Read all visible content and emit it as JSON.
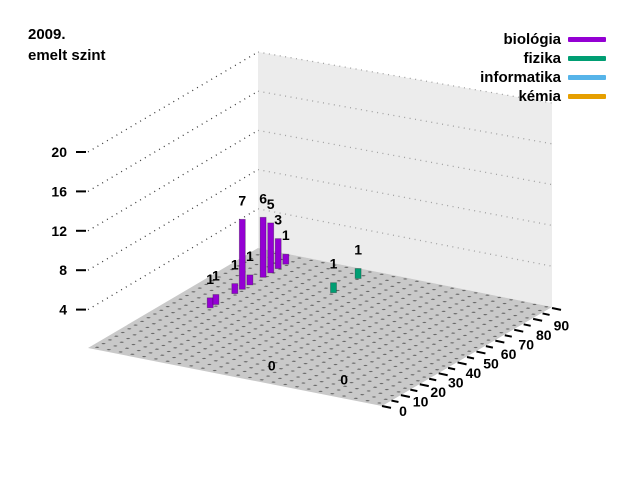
{
  "title": {
    "line1": "2009.",
    "line2": "emelt szint"
  },
  "legend": {
    "position": "top-right"
  },
  "chart_data": {
    "type": "bar",
    "projection": "3d",
    "title": "2009. emelt szint",
    "x_axis": {
      "tick_labels": [
        0,
        10,
        20,
        30,
        40,
        50,
        60,
        70,
        80,
        90
      ],
      "minor_tick_step": 5,
      "range": [
        0,
        95
      ]
    },
    "z_axis": {
      "tick_labels": [
        4,
        8,
        12,
        16,
        20
      ],
      "range": [
        0,
        20
      ]
    },
    "grid": true,
    "value_labels": true,
    "legend_position": "top-right",
    "colors": {
      "floor": "#c9c9c9",
      "wall": "#ececec",
      "grid_front": "#3a3a3a",
      "grid_wall": "#a0a0a0"
    },
    "series": [
      {
        "name": "biológia",
        "color": "#9400d3",
        "points": [
          {
            "x": 44,
            "count": 1
          },
          {
            "x": 47,
            "count": 1
          },
          {
            "x": 57,
            "count": 1
          },
          {
            "x": 61,
            "count": 7
          },
          {
            "x": 65,
            "count": 1
          },
          {
            "x": 72,
            "count": 6
          },
          {
            "x": 76,
            "count": 5
          },
          {
            "x": 80,
            "count": 3
          },
          {
            "x": 84,
            "count": 1
          }
        ]
      },
      {
        "name": "fizika",
        "color": "#009e73",
        "points": [
          {
            "x": 71,
            "count": 1
          },
          {
            "x": 84,
            "count": 1
          }
        ]
      },
      {
        "name": "informatika",
        "color": "#56b4e9",
        "points": [
          {
            "x": 0,
            "count": 0
          }
        ]
      },
      {
        "name": "kémia",
        "color": "#e69f00",
        "points": [
          {
            "x": 0,
            "count": 0
          }
        ]
      }
    ]
  }
}
